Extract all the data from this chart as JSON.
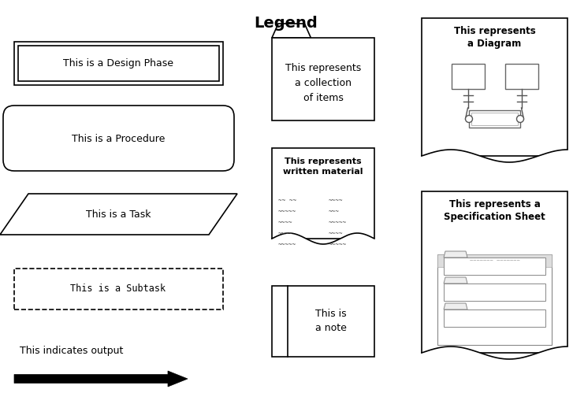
{
  "title": "Legend",
  "title_fontsize": 14,
  "title_fontweight": "bold",
  "bg_color": "#ffffff",
  "figsize": [
    7.27,
    5.13
  ],
  "dpi": 100,
  "xlim": [
    0,
    727
  ],
  "ylim": [
    0,
    513
  ]
}
